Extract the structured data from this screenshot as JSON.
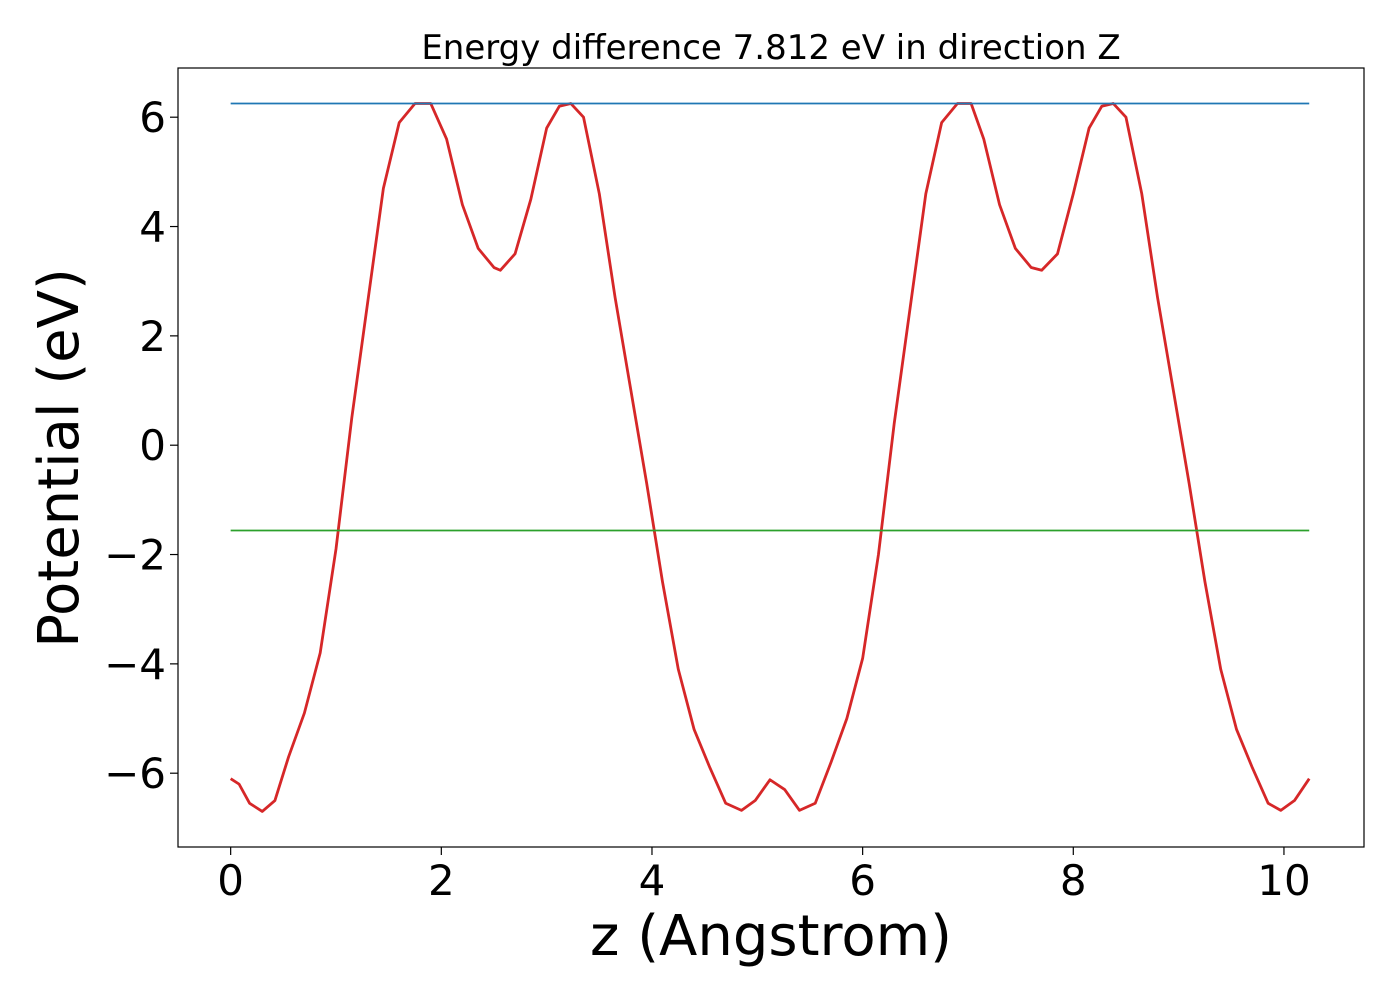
{
  "chart_data": {
    "type": "line",
    "title": "Energy difference 7.812 eV in direction Z",
    "xlabel": "z (Angstrom)",
    "ylabel": "Potential (eV)",
    "xlim": [
      -0.5,
      10.76
    ],
    "ylim": [
      -7.35,
      6.9
    ],
    "xticks": [
      0,
      2,
      4,
      6,
      8,
      10
    ],
    "xtick_labels": [
      "0",
      "2",
      "4",
      "6",
      "8",
      "10"
    ],
    "yticks": [
      6,
      4,
      2,
      0,
      -2,
      -4,
      -6
    ],
    "ytick_labels": [
      "6",
      "4",
      "2",
      "0",
      "−2",
      "−4",
      "−6"
    ],
    "grid": false,
    "series": [
      {
        "color": "#d62728",
        "x": [
          0,
          0.08,
          0.18,
          0.3,
          0.42,
          0.55,
          0.7,
          0.85,
          1.0,
          1.15,
          1.3,
          1.45,
          1.6,
          1.75,
          1.9,
          2.05,
          2.2,
          2.35,
          2.5,
          2.56,
          2.7,
          2.85,
          3.0,
          3.12,
          3.23,
          3.35,
          3.5,
          3.65,
          3.8,
          3.95,
          4.1,
          4.25,
          4.4,
          4.55,
          4.7,
          4.85,
          4.98,
          5.12,
          5.26,
          5.4,
          5.55,
          5.7,
          5.85,
          6.0,
          6.15,
          6.3,
          6.45,
          6.6,
          6.75,
          6.9,
          7.03,
          7.15,
          7.3,
          7.45,
          7.6,
          7.7,
          7.85,
          8.0,
          8.15,
          8.27,
          8.38,
          8.5,
          8.65,
          8.8,
          8.95,
          9.1,
          9.25,
          9.4,
          9.55,
          9.7,
          9.85,
          9.97,
          10.1,
          10.24
        ],
        "y": [
          -6.1,
          -6.2,
          -6.55,
          -6.7,
          -6.5,
          -5.7,
          -4.9,
          -3.8,
          -1.9,
          0.5,
          2.6,
          4.7,
          5.9,
          6.25,
          6.25,
          5.6,
          4.4,
          3.6,
          3.25,
          3.2,
          3.5,
          4.5,
          5.8,
          6.2,
          6.25,
          6.0,
          4.6,
          2.7,
          1.0,
          -0.7,
          -2.5,
          -4.1,
          -5.2,
          -5.9,
          -6.55,
          -6.68,
          -6.5,
          -6.12,
          -6.3,
          -6.68,
          -6.55,
          -5.8,
          -5.0,
          -3.9,
          -2.0,
          0.4,
          2.5,
          4.6,
          5.9,
          6.25,
          6.25,
          5.6,
          4.4,
          3.6,
          3.25,
          3.2,
          3.5,
          4.6,
          5.8,
          6.2,
          6.25,
          6.0,
          4.6,
          2.7,
          1.0,
          -0.7,
          -2.5,
          -4.1,
          -5.2,
          -5.9,
          -6.55,
          -6.68,
          -6.5,
          -6.1
        ]
      },
      {
        "color": "#1f77b4",
        "x": [
          0,
          10.24
        ],
        "y": [
          6.25,
          6.25
        ]
      },
      {
        "color": "#2ca02c",
        "x": [
          0,
          10.24
        ],
        "y": [
          -1.56,
          -1.56
        ]
      }
    ]
  }
}
